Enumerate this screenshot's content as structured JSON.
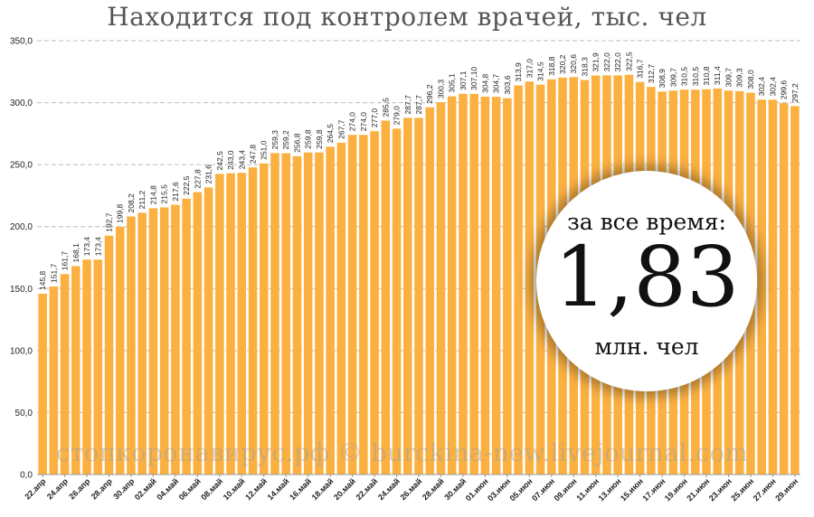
{
  "chart_data": {
    "type": "bar",
    "title": "Находится под контролем врачей, тыс. чел",
    "ylim": [
      0,
      350
    ],
    "yticks": [
      "0,0",
      "50,0",
      "100,0",
      "150,0",
      "200,0",
      "250,0",
      "300,0",
      "350,0"
    ],
    "grid": true,
    "bar_color": "#FBB040",
    "values": [
      145.8,
      151.7,
      161.7,
      168.1,
      173.4,
      173.4,
      192.7,
      199.8,
      208.2,
      211.2,
      214.8,
      215.5,
      217.6,
      222.5,
      227.8,
      231.6,
      242.5,
      243.0,
      243.4,
      247.8,
      251.0,
      259.3,
      259.2,
      256.8,
      259.8,
      259.8,
      264.5,
      267.7,
      274.0,
      274.0,
      277.0,
      285.5,
      279.0,
      287.7,
      287.7,
      296.2,
      300.3,
      305.1,
      307.1,
      307.1,
      304.8,
      304.7,
      303.6,
      313.9,
      317.0,
      314.5,
      318.8,
      320.2,
      320.6,
      318.3,
      321.9,
      322.0,
      322.0,
      322.5,
      316.7,
      312.7,
      308.9,
      309.7,
      310.5,
      310.5,
      310.8,
      311.4,
      309.7,
      309.3,
      308.0,
      302.4,
      302.4,
      299.6,
      297.2
    ],
    "value_labels": [
      "145,8",
      "151,7",
      "161,7",
      "168,1",
      "173,4",
      "173,4",
      "192,7",
      "199,8",
      "208,2",
      "211,2",
      "214,8",
      "215,5",
      "217,6",
      "222,5",
      "227,8",
      "231,6",
      "242,5",
      "243,0",
      "243,4",
      "247,8",
      "251,0",
      "259,3",
      "259,2",
      "256,8",
      "259,8",
      "259,8",
      "264,5",
      "267,7",
      "274,0",
      "274,0",
      "277,0",
      "285,5",
      "279,0",
      "287,7",
      "287,7",
      "296,2",
      "300,3",
      "305,1",
      "307,1",
      "307,10",
      "304,8",
      "304,7",
      "303,6",
      "313,9",
      "317,0",
      "314,5",
      "318,8",
      "320,2",
      "320,6",
      "318,3",
      "321,9",
      "322,0",
      "322,0",
      "322,5",
      "316,7",
      "312,7",
      "308,9",
      "309,7",
      "310,5",
      "310,5",
      "310,8",
      "311,4",
      "309,7",
      "309,3",
      "308,0",
      "302,4",
      "302,4",
      "299,6",
      "297,2"
    ],
    "x_tick_labels": [
      "22.апр",
      "24.апр",
      "26.апр",
      "28.апр",
      "30.апр",
      "02.май",
      "04.май",
      "06.май",
      "08.май",
      "10.май",
      "12.май",
      "14.май",
      "16.май",
      "18.май",
      "20.май",
      "22.май",
      "24.май",
      "26.май",
      "28.май",
      "30.май",
      "01.июн",
      "03.июн",
      "05.июн",
      "07.июн",
      "09.июн",
      "11.июн",
      "13.июн",
      "15.июн",
      "17.июн",
      "19.июн",
      "21.июн",
      "23.июн",
      "25.июн",
      "27.июн",
      "29.июн"
    ],
    "x_tick_every": 2
  },
  "badge": {
    "top_text": "за все время:",
    "number": "1,83",
    "bottom_text": "млн. чел"
  },
  "watermark": "стопкоронавирус.рф © burckina-new.livejournal.com"
}
